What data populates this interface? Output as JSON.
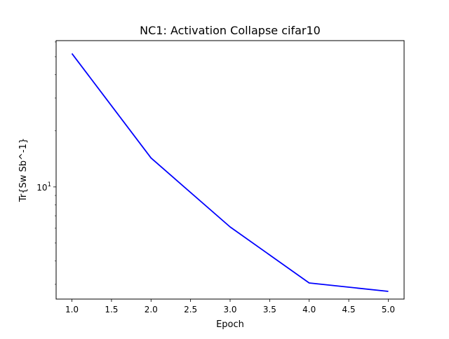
{
  "chart_data": {
    "type": "line",
    "title": "NC1: Activation Collapse cifar10",
    "xlabel": "Epoch",
    "ylabel": "Tr{Sw Sb^-1}",
    "yscale": "log",
    "xlim": [
      0.8,
      5.2
    ],
    "ylim": [
      2.5,
      61
    ],
    "x_ticks": [
      1.0,
      1.5,
      2.0,
      2.5,
      3.0,
      3.5,
      4.0,
      4.5,
      5.0
    ],
    "x_tick_labels": [
      "1.0",
      "1.5",
      "2.0",
      "2.5",
      "3.0",
      "3.5",
      "4.0",
      "4.5",
      "5.0"
    ],
    "y_major_ticks": [
      10
    ],
    "y_minor_ticks": [
      3,
      4,
      5,
      6,
      7,
      8,
      9,
      20,
      30,
      40,
      50,
      60
    ],
    "grid": false,
    "legend": "none",
    "series": [
      {
        "color": "#0000ff",
        "x": [
          1,
          2,
          3,
          4,
          5
        ],
        "y": [
          52,
          14.3,
          6.1,
          3.05,
          2.75
        ]
      }
    ]
  }
}
